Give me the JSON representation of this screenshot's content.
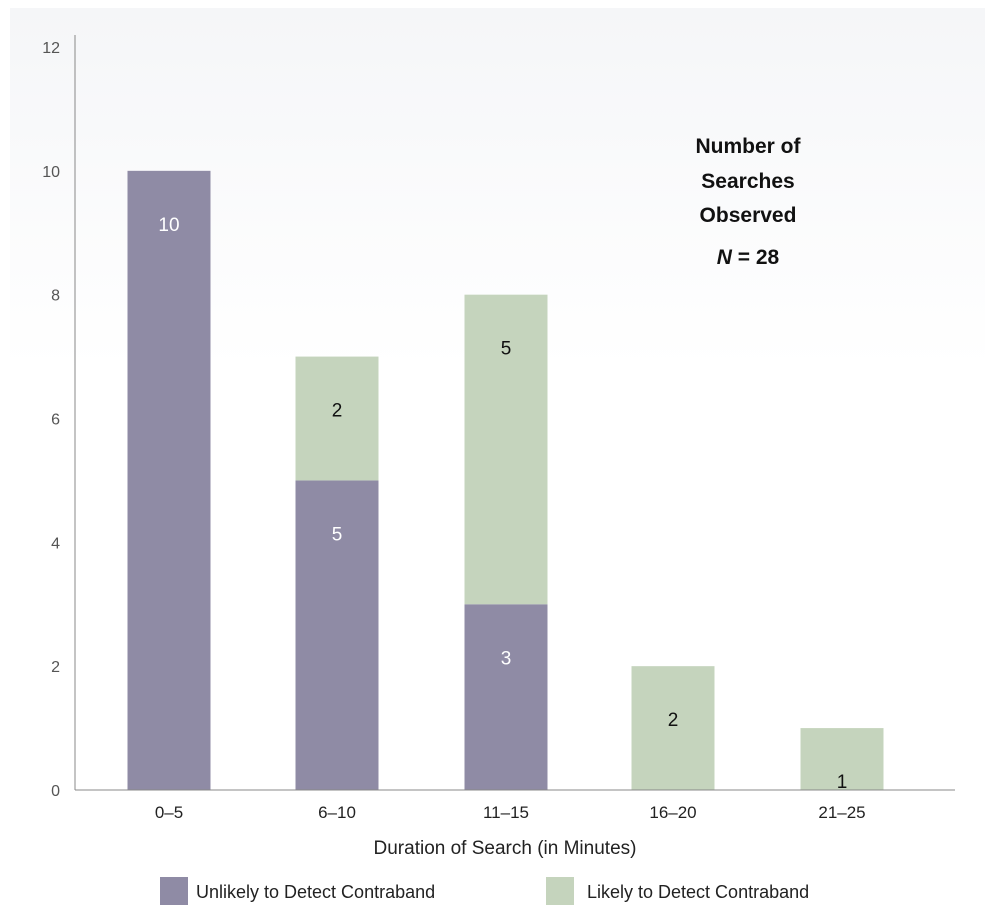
{
  "chart_data": {
    "type": "bar",
    "stacked": true,
    "categories": [
      "0–5",
      "6–10",
      "11–15",
      "16–20",
      "21–25"
    ],
    "series": [
      {
        "name": "Unlikely to Detect Contraband",
        "values": [
          10,
          5,
          3,
          0,
          0
        ],
        "color": "#8f8ba5",
        "label_color": "#ffffff"
      },
      {
        "name": "Likely to Detect Contraband",
        "values": [
          0,
          2,
          5,
          2,
          1
        ],
        "color": "#c5d4bd",
        "label_color": "#111111"
      }
    ],
    "xlabel": "Duration of Search (in Minutes)",
    "ylabel": "",
    "ylim": [
      0,
      12
    ],
    "yticks": [
      0,
      2,
      4,
      6,
      8,
      10,
      12
    ],
    "grid": false,
    "legend_position": "bottom",
    "annotation": {
      "title_lines": [
        "Number of",
        "Searches",
        "Observed"
      ],
      "n_symbol": "N",
      "n_text": " = 28"
    }
  }
}
